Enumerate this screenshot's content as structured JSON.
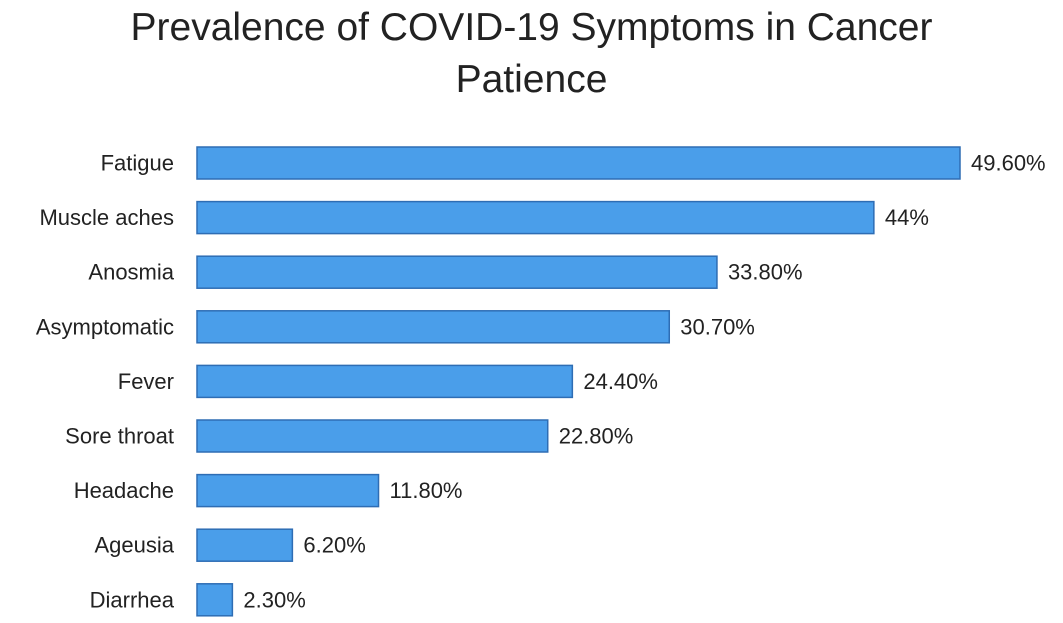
{
  "chart_data": {
    "type": "bar",
    "orientation": "horizontal",
    "title_lines": [
      "Prevalence of COVID-19 Symptoms in Cancer",
      "Patience"
    ],
    "categories": [
      "Fatigue",
      "Muscle aches",
      "Anosmia",
      "Asymptomatic",
      "Fever",
      "Sore throat",
      "Headache",
      "Ageusia",
      "Diarrhea"
    ],
    "values": [
      49.6,
      44,
      33.8,
      30.7,
      24.4,
      22.8,
      11.8,
      6.2,
      2.3
    ],
    "value_labels": [
      "49.60%",
      "44%",
      "33.80%",
      "30.70%",
      "24.40%",
      "22.80%",
      "11.80%",
      "6.20%",
      "2.30%"
    ],
    "xlim": [
      0,
      49.6
    ],
    "xlabel": "",
    "ylabel": "",
    "grid": false,
    "legend": "none",
    "bar_color": "#4a9eea",
    "bar_edge_color": "#2e6db4"
  }
}
